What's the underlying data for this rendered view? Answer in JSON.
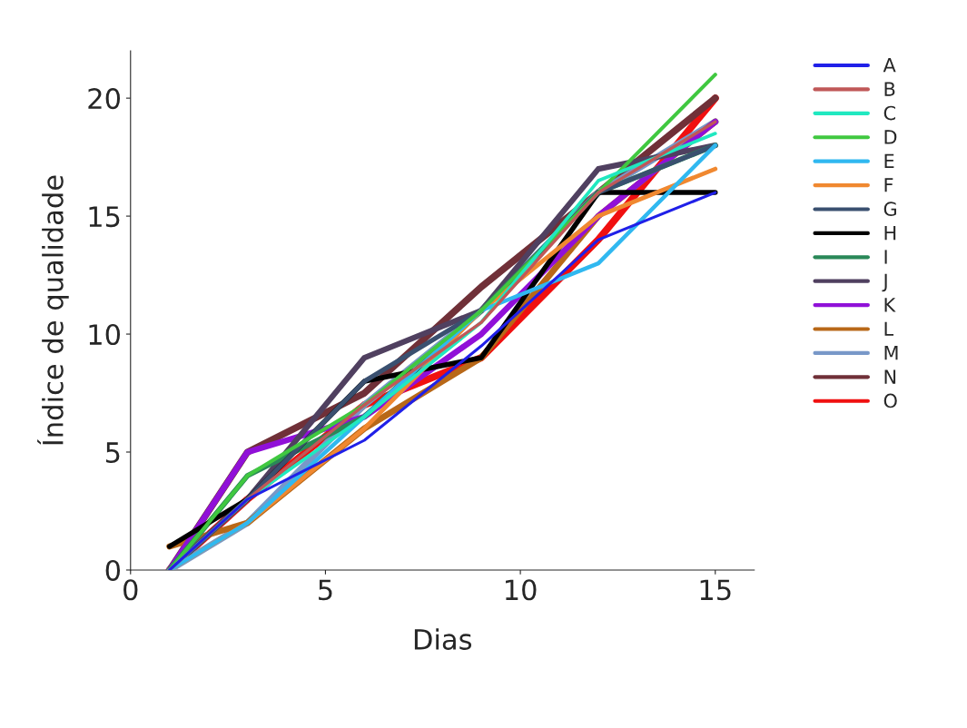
{
  "chart_data": {
    "type": "line",
    "xlabel": "Dias",
    "ylabel": "Índice de qualidade",
    "x": [
      1,
      3,
      6,
      9,
      12,
      15
    ],
    "xlim": [
      0,
      16
    ],
    "ylim": [
      0,
      22
    ],
    "xticks": [
      0,
      5,
      10,
      15
    ],
    "yticks": [
      0,
      5,
      10,
      15,
      20
    ],
    "legend": "right",
    "grid": false,
    "series": [
      {
        "name": "A",
        "color": "#2020e8",
        "values": [
          0,
          3,
          5.5,
          9.5,
          14,
          16
        ]
      },
      {
        "name": "B",
        "color": "#c05858",
        "values": [
          0,
          3,
          7,
          10.5,
          16,
          19
        ]
      },
      {
        "name": "C",
        "color": "#20e8c0",
        "values": [
          0,
          3,
          6.5,
          10.5,
          16.5,
          18.5
        ]
      },
      {
        "name": "D",
        "color": "#40c840",
        "values": [
          0,
          4,
          7,
          11,
          16,
          21
        ]
      },
      {
        "name": "E",
        "color": "#30b8f0",
        "values": [
          0,
          2,
          6.5,
          11,
          13,
          18
        ]
      },
      {
        "name": "F",
        "color": "#f08830",
        "values": [
          0,
          2,
          6,
          11,
          15,
          17
        ]
      },
      {
        "name": "G",
        "color": "#3a5070",
        "values": [
          0,
          3,
          8,
          11,
          16,
          18
        ]
      },
      {
        "name": "H",
        "color": "#000000",
        "values": [
          1,
          3,
          8,
          9,
          16,
          16
        ]
      },
      {
        "name": "I",
        "color": "#2a8858",
        "values": [
          0,
          4,
          6.5,
          11,
          16,
          18
        ]
      },
      {
        "name": "J",
        "color": "#504060",
        "values": [
          0,
          3,
          9,
          11,
          17,
          18
        ]
      },
      {
        "name": "K",
        "color": "#9010d8",
        "values": [
          0,
          5,
          6.5,
          10,
          15,
          19
        ]
      },
      {
        "name": "L",
        "color": "#b86818",
        "values": [
          1,
          2,
          6,
          9,
          15,
          19
        ]
      },
      {
        "name": "M",
        "color": "#7898c8",
        "values": [
          0,
          2,
          7,
          11,
          16,
          19
        ]
      },
      {
        "name": "N",
        "color": "#703038",
        "values": [
          0,
          5,
          7.5,
          12,
          16,
          20
        ]
      },
      {
        "name": "O",
        "color": "#f01010",
        "values": [
          0,
          3,
          7,
          9,
          14,
          20
        ]
      }
    ]
  }
}
